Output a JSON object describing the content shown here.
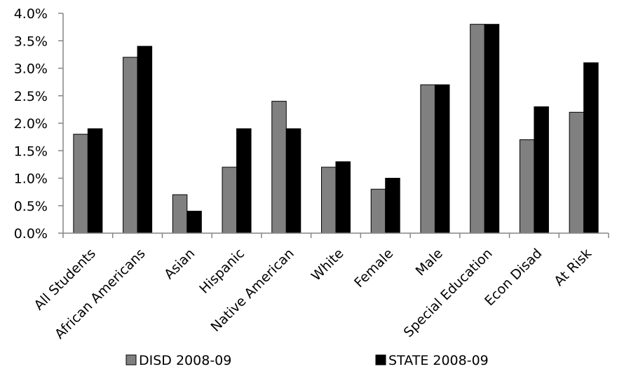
{
  "chart_data": {
    "type": "bar",
    "title": "",
    "xlabel": "",
    "ylabel": "",
    "categories": [
      "All Students",
      "African Americans",
      "Asian",
      "Hispanic",
      "Native American",
      "White",
      "Female",
      "Male",
      "Special Education",
      "Econ Disad",
      "At Risk"
    ],
    "series": [
      {
        "name": "DISD 2008-09",
        "color": "#808080",
        "values": [
          1.8,
          3.2,
          0.7,
          1.2,
          2.4,
          1.2,
          0.8,
          2.7,
          3.8,
          1.7,
          2.2
        ]
      },
      {
        "name": "STATE 2008-09",
        "color": "#000000",
        "values": [
          1.9,
          3.4,
          0.4,
          1.9,
          1.9,
          1.3,
          1.0,
          2.7,
          3.8,
          2.3,
          3.1
        ]
      }
    ],
    "ylim": [
      0,
      4.0
    ],
    "yticks": [
      "0.0%",
      "0.5%",
      "1.0%",
      "1.5%",
      "2.0%",
      "2.5%",
      "3.0%",
      "3.5%",
      "4.0%"
    ],
    "grid": false,
    "legend_position": "bottom"
  }
}
